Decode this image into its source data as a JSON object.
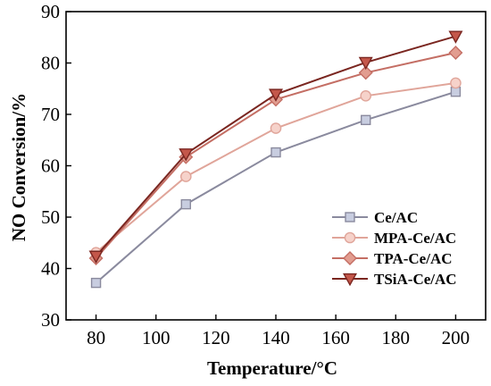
{
  "chart_data": {
    "type": "line",
    "xlabel": "Temperature/°C",
    "ylabel": "NO Conversion/%",
    "x": [
      80,
      110,
      140,
      170,
      200
    ],
    "xlim": [
      70,
      210
    ],
    "ylim": [
      30,
      90
    ],
    "xticks": [
      80,
      100,
      120,
      140,
      160,
      180,
      200
    ],
    "yticks": [
      30,
      40,
      50,
      60,
      70,
      80,
      90
    ],
    "grid": false,
    "legend_position": "lower-right",
    "series": [
      {
        "name": "Ce/AC",
        "values": [
          37.2,
          52.5,
          62.6,
          68.9,
          74.4
        ],
        "marker": "square",
        "color": "#8a8a9e",
        "fill": "#c8cde0"
      },
      {
        "name": "MPA-Ce/AC",
        "values": [
          43.1,
          57.9,
          67.3,
          73.6,
          76.1
        ],
        "marker": "circle",
        "color": "#e0a59a",
        "fill": "#f6d2ca"
      },
      {
        "name": "TPA-Ce/AC",
        "values": [
          42.0,
          61.7,
          72.9,
          78.1,
          82.0
        ],
        "marker": "diamond",
        "color": "#c46e64",
        "fill": "#e29d90"
      },
      {
        "name": "TSiA-Ce/AC",
        "values": [
          42.4,
          62.3,
          73.9,
          80.1,
          85.2
        ],
        "marker": "triangle-down",
        "color": "#7a2620",
        "fill": "#c4574a"
      }
    ]
  }
}
